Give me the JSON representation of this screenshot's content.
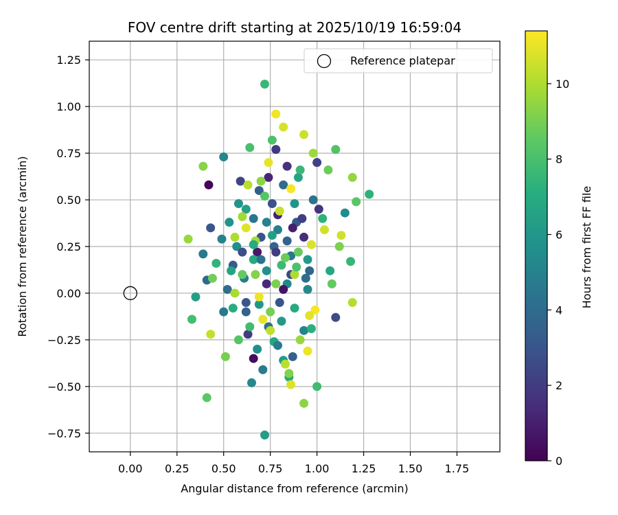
{
  "chart_data": {
    "type": "scatter",
    "title": "FOV centre drift starting at 2025/10/19 16:59:04",
    "xlabel": "Angular distance from reference (arcmin)",
    "ylabel": "Rotation from reference (arcmin)",
    "xlim": [
      -0.22,
      1.98
    ],
    "ylim": [
      -0.85,
      1.35
    ],
    "x_ticks": [
      "0.00",
      "0.25",
      "0.50",
      "0.75",
      "1.00",
      "1.25",
      "1.50",
      "1.75"
    ],
    "y_ticks": [
      "−0.75",
      "−0.50",
      "−0.25",
      "0.00",
      "0.25",
      "0.50",
      "0.75",
      "1.00",
      "1.25"
    ],
    "grid": true,
    "legend": {
      "placement": "top-right",
      "entries": [
        "Reference platepar"
      ]
    },
    "reference_point": {
      "x": 0.0,
      "y": 0.0
    },
    "colorbar": {
      "label": "Hours from first FF file",
      "colormap": "viridis",
      "range": [
        0,
        11.4
      ],
      "ticks": [
        "0",
        "2",
        "4",
        "6",
        "8",
        "10"
      ]
    },
    "series": [
      {
        "points": [
          {
            "x": 0.42,
            "y": 0.58,
            "c": 0.2
          },
          {
            "x": 0.66,
            "y": -0.35,
            "c": 0.4
          },
          {
            "x": 0.68,
            "y": 0.22,
            "c": 0.8
          },
          {
            "x": 0.79,
            "y": 0.42,
            "c": 1.1
          },
          {
            "x": 0.73,
            "y": 0.05,
            "c": 1.3
          },
          {
            "x": 0.93,
            "y": 0.3,
            "c": 1.5
          },
          {
            "x": 0.84,
            "y": 0.68,
            "c": 1.6
          },
          {
            "x": 1.01,
            "y": 0.45,
            "c": 1.7
          },
          {
            "x": 0.78,
            "y": 0.77,
            "c": 1.9
          },
          {
            "x": 0.63,
            "y": -0.22,
            "c": 2.0
          },
          {
            "x": 1.0,
            "y": 0.7,
            "c": 2.2
          },
          {
            "x": 0.59,
            "y": 0.6,
            "c": 2.3
          },
          {
            "x": 0.86,
            "y": 0.1,
            "c": 2.5
          },
          {
            "x": 1.1,
            "y": -0.13,
            "c": 2.6
          },
          {
            "x": 0.76,
            "y": 0.48,
            "c": 2.8
          },
          {
            "x": 0.7,
            "y": 0.3,
            "c": 2.9
          },
          {
            "x": 0.8,
            "y": -0.05,
            "c": 3.0
          },
          {
            "x": 0.43,
            "y": 0.35,
            "c": 3.1
          },
          {
            "x": 0.89,
            "y": 0.38,
            "c": 3.2
          },
          {
            "x": 0.55,
            "y": 0.15,
            "c": 3.3
          },
          {
            "x": 0.69,
            "y": 0.55,
            "c": 3.4
          },
          {
            "x": 0.87,
            "y": -0.34,
            "c": 3.5
          },
          {
            "x": 0.62,
            "y": -0.1,
            "c": 3.6
          },
          {
            "x": 0.77,
            "y": 0.25,
            "c": 3.7
          },
          {
            "x": 0.96,
            "y": 0.12,
            "c": 3.8
          },
          {
            "x": 0.41,
            "y": 0.07,
            "c": 3.9
          },
          {
            "x": 0.82,
            "y": 0.58,
            "c": 4.0
          },
          {
            "x": 0.52,
            "y": 0.02,
            "c": 4.1
          },
          {
            "x": 0.74,
            "y": -0.18,
            "c": 4.2
          },
          {
            "x": 0.98,
            "y": 0.5,
            "c": 4.3
          },
          {
            "x": 0.66,
            "y": 0.4,
            "c": 4.4
          },
          {
            "x": 0.86,
            "y": 0.2,
            "c": 4.5
          },
          {
            "x": 0.39,
            "y": 0.21,
            "c": 4.6
          },
          {
            "x": 0.71,
            "y": -0.41,
            "c": 4.7
          },
          {
            "x": 0.61,
            "y": 0.08,
            "c": 4.8
          },
          {
            "x": 0.79,
            "y": 0.34,
            "c": 4.9
          },
          {
            "x": 0.49,
            "y": 0.29,
            "c": 5.0
          },
          {
            "x": 0.93,
            "y": -0.2,
            "c": 5.1
          },
          {
            "x": 0.5,
            "y": 0.73,
            "c": 5.2
          },
          {
            "x": 0.65,
            "y": -0.48,
            "c": 5.3
          },
          {
            "x": 0.84,
            "y": 0.05,
            "c": 5.4
          },
          {
            "x": 1.15,
            "y": 0.43,
            "c": 5.5
          },
          {
            "x": 0.57,
            "y": 0.25,
            "c": 5.6
          },
          {
            "x": 0.73,
            "y": 0.12,
            "c": 5.7
          },
          {
            "x": 0.53,
            "y": 0.38,
            "c": 5.8
          },
          {
            "x": 0.88,
            "y": 0.48,
            "c": 5.9
          },
          {
            "x": 0.69,
            "y": -0.06,
            "c": 6.0
          },
          {
            "x": 0.95,
            "y": 0.18,
            "c": 6.1
          },
          {
            "x": 0.82,
            "y": -0.36,
            "c": 6.2
          },
          {
            "x": 0.72,
            "y": -0.76,
            "c": 6.3
          },
          {
            "x": 0.35,
            "y": -0.02,
            "c": 6.4
          },
          {
            "x": 0.62,
            "y": 0.45,
            "c": 6.5
          },
          {
            "x": 0.9,
            "y": 0.62,
            "c": 6.6
          },
          {
            "x": 0.77,
            "y": -0.26,
            "c": 6.7
          },
          {
            "x": 1.07,
            "y": 0.12,
            "c": 6.8
          },
          {
            "x": 0.66,
            "y": 0.18,
            "c": 6.9
          },
          {
            "x": 0.85,
            "y": -0.45,
            "c": 7.0
          },
          {
            "x": 0.55,
            "y": -0.08,
            "c": 7.1
          },
          {
            "x": 0.97,
            "y": -0.19,
            "c": 7.2
          },
          {
            "x": 1.28,
            "y": 0.53,
            "c": 7.3
          },
          {
            "x": 0.46,
            "y": 0.16,
            "c": 7.4
          },
          {
            "x": 1.18,
            "y": 0.17,
            "c": 7.5
          },
          {
            "x": 0.72,
            "y": 1.12,
            "c": 7.6
          },
          {
            "x": 0.81,
            "y": 0.15,
            "c": 7.7
          },
          {
            "x": 1.0,
            "y": -0.5,
            "c": 7.8
          },
          {
            "x": 0.33,
            "y": -0.14,
            "c": 7.9
          },
          {
            "x": 0.64,
            "y": 0.78,
            "c": 8.0
          },
          {
            "x": 0.76,
            "y": 0.82,
            "c": 8.1
          },
          {
            "x": 1.1,
            "y": 0.77,
            "c": 8.2
          },
          {
            "x": 0.58,
            "y": -0.25,
            "c": 8.3
          },
          {
            "x": 1.21,
            "y": 0.49,
            "c": 8.4
          },
          {
            "x": 0.41,
            "y": -0.56,
            "c": 8.5
          },
          {
            "x": 0.6,
            "y": 0.1,
            "c": 8.6
          },
          {
            "x": 0.9,
            "y": 0.22,
            "c": 8.7
          },
          {
            "x": 1.06,
            "y": 0.66,
            "c": 8.8
          },
          {
            "x": 0.44,
            "y": 0.08,
            "c": 8.9
          },
          {
            "x": 0.51,
            "y": -0.34,
            "c": 9.0
          },
          {
            "x": 0.78,
            "y": 0.05,
            "c": 9.1
          },
          {
            "x": 0.85,
            "y": -0.43,
            "c": 9.2
          },
          {
            "x": 0.39,
            "y": 0.68,
            "c": 9.3
          },
          {
            "x": 0.93,
            "y": -0.59,
            "c": 9.4
          },
          {
            "x": 1.19,
            "y": 0.62,
            "c": 9.5
          },
          {
            "x": 0.31,
            "y": 0.29,
            "c": 9.6
          },
          {
            "x": 0.98,
            "y": 0.75,
            "c": 9.7
          },
          {
            "x": 0.67,
            "y": 0.28,
            "c": 9.8
          },
          {
            "x": 0.56,
            "y": 0.0,
            "c": 9.9
          },
          {
            "x": 0.88,
            "y": 0.1,
            "c": 10.0
          },
          {
            "x": 1.19,
            "y": -0.05,
            "c": 10.1
          },
          {
            "x": 0.63,
            "y": 0.58,
            "c": 10.2
          },
          {
            "x": 0.75,
            "y": -0.2,
            "c": 10.3
          },
          {
            "x": 0.43,
            "y": -0.22,
            "c": 10.4
          },
          {
            "x": 0.93,
            "y": 0.85,
            "c": 10.5
          },
          {
            "x": 1.13,
            "y": 0.31,
            "c": 10.6
          },
          {
            "x": 0.82,
            "y": 0.89,
            "c": 10.7
          },
          {
            "x": 0.86,
            "y": -0.49,
            "c": 10.8
          },
          {
            "x": 0.62,
            "y": 0.35,
            "c": 10.9
          },
          {
            "x": 0.71,
            "y": -0.14,
            "c": 11.0
          },
          {
            "x": 0.95,
            "y": -0.31,
            "c": 11.1
          },
          {
            "x": 0.78,
            "y": 0.96,
            "c": 11.2
          },
          {
            "x": 0.99,
            "y": -0.09,
            "c": 11.3
          },
          {
            "x": 0.82,
            "y": 0.02,
            "c": 0.6
          },
          {
            "x": 0.74,
            "y": 0.62,
            "c": 1.2
          },
          {
            "x": 0.92,
            "y": 0.4,
            "c": 2.1
          },
          {
            "x": 0.6,
            "y": 0.22,
            "c": 2.7
          },
          {
            "x": 0.84,
            "y": 0.28,
            "c": 3.6
          },
          {
            "x": 0.7,
            "y": 0.18,
            "c": 4.3
          },
          {
            "x": 0.79,
            "y": -0.28,
            "c": 4.8
          },
          {
            "x": 0.95,
            "y": 0.02,
            "c": 5.3
          },
          {
            "x": 0.58,
            "y": 0.48,
            "c": 5.9
          },
          {
            "x": 0.76,
            "y": 0.31,
            "c": 6.4
          },
          {
            "x": 0.88,
            "y": -0.08,
            "c": 6.9
          },
          {
            "x": 1.03,
            "y": 0.4,
            "c": 7.3
          },
          {
            "x": 0.64,
            "y": -0.18,
            "c": 7.8
          },
          {
            "x": 0.72,
            "y": 0.52,
            "c": 8.3
          },
          {
            "x": 0.83,
            "y": 0.19,
            "c": 8.8
          },
          {
            "x": 0.67,
            "y": 0.1,
            "c": 9.2
          },
          {
            "x": 0.91,
            "y": -0.25,
            "c": 9.6
          },
          {
            "x": 0.56,
            "y": 0.3,
            "c": 10.0
          },
          {
            "x": 0.8,
            "y": 0.44,
            "c": 10.4
          },
          {
            "x": 0.97,
            "y": 0.26,
            "c": 10.8
          },
          {
            "x": 0.69,
            "y": -0.02,
            "c": 11.1
          },
          {
            "x": 0.86,
            "y": 0.56,
            "c": 11.3
          },
          {
            "x": 1.04,
            "y": 0.34,
            "c": 10.6
          },
          {
            "x": 0.6,
            "y": 0.41,
            "c": 9.8
          },
          {
            "x": 0.75,
            "y": -0.1,
            "c": 9.0
          },
          {
            "x": 0.89,
            "y": 0.14,
            "c": 8.1
          },
          {
            "x": 0.66,
            "y": 0.26,
            "c": 7.0
          },
          {
            "x": 0.81,
            "y": -0.15,
            "c": 6.1
          },
          {
            "x": 0.73,
            "y": 0.38,
            "c": 5.0
          },
          {
            "x": 0.94,
            "y": 0.08,
            "c": 4.0
          },
          {
            "x": 0.62,
            "y": -0.05,
            "c": 3.0
          },
          {
            "x": 0.78,
            "y": 0.22,
            "c": 2.0
          },
          {
            "x": 0.87,
            "y": 0.35,
            "c": 1.0
          },
          {
            "x": 0.7,
            "y": 0.6,
            "c": 9.4
          },
          {
            "x": 0.83,
            "y": -0.38,
            "c": 10.2
          },
          {
            "x": 1.08,
            "y": 0.05,
            "c": 8.6
          },
          {
            "x": 0.54,
            "y": 0.12,
            "c": 6.6
          },
          {
            "x": 0.91,
            "y": 0.66,
            "c": 7.6
          },
          {
            "x": 0.68,
            "y": -0.3,
            "c": 5.6
          },
          {
            "x": 1.12,
            "y": 0.25,
            "c": 9.1
          },
          {
            "x": 0.5,
            "y": -0.1,
            "c": 4.6
          },
          {
            "x": 0.96,
            "y": -0.12,
            "c": 10.9
          },
          {
            "x": 0.74,
            "y": 0.7,
            "c": 11.0
          }
        ]
      }
    ]
  }
}
